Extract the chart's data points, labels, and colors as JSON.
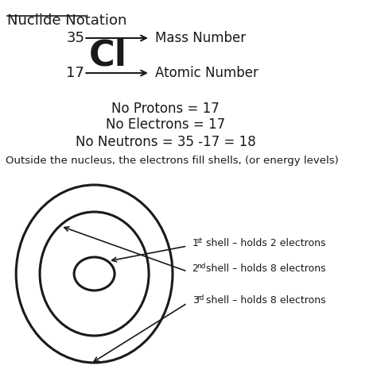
{
  "title": "Nuclide Notation",
  "bg_color": "#ffffff",
  "mass_number": "35",
  "atomic_number": "17",
  "element_symbol": "Cl",
  "mass_label": "Mass Number",
  "atomic_label": "Atomic Number",
  "protons_text": "No Protons = 17",
  "electrons_text": "No Electrons = 17",
  "neutrons_text": "No Neutrons = 35 -17 = 18",
  "shell_text": "Outside the nucleus, the electrons fill shells, (or energy levels)",
  "shell1_label": "1st shell – holds 2 electrons",
  "shell1_sup": "st",
  "shell2_label": "2nd shell – holds 8 electrons",
  "shell2_sup": "nd",
  "shell3_label": "3rd shell – holds 8 electrons",
  "shell3_sup": "rd",
  "font_color": "#1a1a1a",
  "line_color": "#1a1a1a",
  "circle_color": "#1a1a1a"
}
